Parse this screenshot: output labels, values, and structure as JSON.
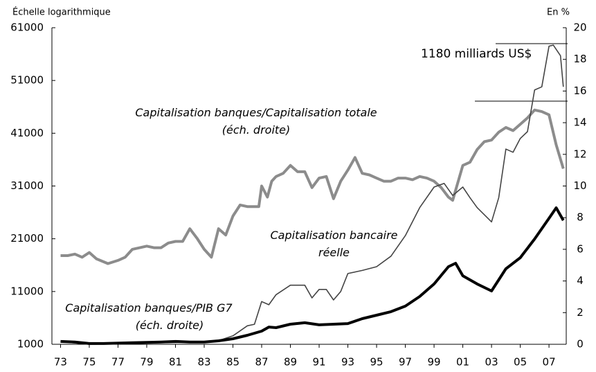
{
  "chart_data": {
    "type": "line",
    "left_axis_label": "Échelle logarithmique",
    "right_axis_label": "En %",
    "annotation": "1180 milliards US$",
    "xlim": [
      1972.4,
      2008.2
    ],
    "xticks": [
      {
        "value": 1973,
        "label": "73"
      },
      {
        "value": 1975,
        "label": "75"
      },
      {
        "value": 1977,
        "label": "77"
      },
      {
        "value": 1979,
        "label": "79"
      },
      {
        "value": 1981,
        "label": "81"
      },
      {
        "value": 1983,
        "label": "83"
      },
      {
        "value": 1985,
        "label": "85"
      },
      {
        "value": 1987,
        "label": "87"
      },
      {
        "value": 1989,
        "label": "89"
      },
      {
        "value": 1991,
        "label": "91"
      },
      {
        "value": 1993,
        "label": "93"
      },
      {
        "value": 1995,
        "label": "95"
      },
      {
        "value": 1997,
        "label": "97"
      },
      {
        "value": 1999,
        "label": "99"
      },
      {
        "value": 2001,
        "label": "01"
      },
      {
        "value": 2003,
        "label": "03"
      },
      {
        "value": 2005,
        "label": "05"
      },
      {
        "value": 2007,
        "label": "07"
      }
    ],
    "ylim": [
      1000,
      61000
    ],
    "yticks": [
      1000,
      11000,
      21000,
      31000,
      41000,
      51000,
      61000
    ],
    "y2lim": [
      0,
      20
    ],
    "y2ticks": [
      0,
      2,
      4,
      6,
      8,
      10,
      12,
      14,
      16,
      18,
      20
    ],
    "series": [
      {
        "name": "Capitalisation banques/Capitalisation totale",
        "note": "(éch. droite)",
        "color": "#8c8c8c",
        "width": 4,
        "axis": "y2",
        "x": [
          1973,
          1973.5,
          1974,
          1974.5,
          1975,
          1975.5,
          1976.3,
          1977,
          1977.5,
          1978,
          1979,
          1979.5,
          1980,
          1980.5,
          1981,
          1981.5,
          1982,
          1982.5,
          1983,
          1983.5,
          1984,
          1984.5,
          1985,
          1985.5,
          1986,
          1986.5,
          1986.8,
          1987,
          1987.4,
          1987.7,
          1988,
          1988.5,
          1989,
          1989.5,
          1990,
          1990.5,
          1991,
          1991.5,
          1992,
          1992.5,
          1993,
          1993.5,
          1994,
          1994.5,
          1995,
          1995.5,
          1996,
          1996.5,
          1997,
          1997.5,
          1998,
          1998.5,
          1999,
          1999.5,
          2000,
          2000.3,
          2001,
          2001.5,
          2002,
          2002.5,
          2003,
          2003.5,
          2004,
          2004.5,
          2005,
          2005.5,
          2006,
          2006.5,
          2007,
          2007.5,
          2008
        ],
        "values": [
          5.6,
          5.6,
          5.7,
          5.5,
          5.8,
          5.4,
          5.1,
          5.3,
          5.5,
          6.0,
          6.2,
          6.1,
          6.1,
          6.4,
          6.5,
          6.5,
          7.3,
          6.7,
          6.0,
          5.5,
          7.3,
          6.9,
          8.1,
          8.8,
          8.7,
          8.7,
          8.7,
          10.0,
          9.3,
          10.3,
          10.6,
          10.8,
          11.3,
          10.9,
          10.9,
          9.9,
          10.5,
          10.6,
          9.2,
          10.3,
          11.0,
          11.8,
          10.8,
          10.7,
          10.5,
          10.3,
          10.3,
          10.5,
          10.5,
          10.4,
          10.6,
          10.5,
          10.3,
          9.9,
          9.3,
          9.1,
          11.3,
          11.5,
          12.3,
          12.8,
          12.9,
          13.4,
          13.7,
          13.5,
          13.9,
          14.3,
          14.8,
          14.7,
          14.5,
          12.6,
          11.1
        ]
      },
      {
        "name": "Capitalisation bancaire réelle",
        "color": "#444444",
        "width": 1.6,
        "x": [
          1973,
          1975,
          1977,
          1980,
          1983,
          1984,
          1985,
          1986,
          1986.5,
          1987,
          1987.5,
          1988,
          1989,
          1990,
          1990.5,
          1991,
          1991.5,
          1992,
          1992.5,
          1993,
          1994,
          1995,
          1996,
          1997,
          1998,
          1999,
          1999.7,
          2000.3,
          2001,
          2001.5,
          2002,
          2003,
          2003.5,
          2004,
          2004.5,
          2005,
          2005.5,
          2006,
          2006.5,
          2007,
          2007.3,
          2007.8,
          2008
        ],
        "values": [
          1500,
          1000,
          1100,
          1300,
          1400,
          1700,
          2600,
          4500,
          4800,
          9100,
          8500,
          10400,
          12200,
          12200,
          9800,
          11400,
          11400,
          9400,
          11000,
          14400,
          15000,
          15700,
          17700,
          21600,
          26900,
          30800,
          31500,
          29200,
          30800,
          28800,
          26900,
          24200,
          28800,
          38000,
          37400,
          40000,
          41300,
          49200,
          49800,
          57500,
          57700,
          55700,
          49800
        ]
      },
      {
        "name": "Capitalisation banques/PIB G7",
        "note": "(éch. droite)",
        "color": "#000000",
        "width": 4,
        "axis": "y2",
        "x": [
          1973,
          1974,
          1975,
          1976,
          1978,
          1980,
          1981,
          1982,
          1983,
          1984,
          1985,
          1986,
          1987,
          1987.5,
          1988,
          1989,
          1990,
          1991,
          1992,
          1993,
          1994,
          1995,
          1996,
          1997,
          1998,
          1999,
          2000,
          2000.5,
          2001,
          2002,
          2003,
          2004,
          2005,
          2006,
          2007,
          2007.5,
          2008
        ],
        "values": [
          0.18,
          0.14,
          0.05,
          0.05,
          0.1,
          0.14,
          0.18,
          0.14,
          0.14,
          0.22,
          0.35,
          0.57,
          0.83,
          1.09,
          1.05,
          1.27,
          1.36,
          1.23,
          1.27,
          1.31,
          1.62,
          1.84,
          2.06,
          2.41,
          3.02,
          3.81,
          4.9,
          5.12,
          4.33,
          3.81,
          3.37,
          4.77,
          5.47,
          6.65,
          7.96,
          8.62,
          7.83
        ]
      }
    ]
  }
}
